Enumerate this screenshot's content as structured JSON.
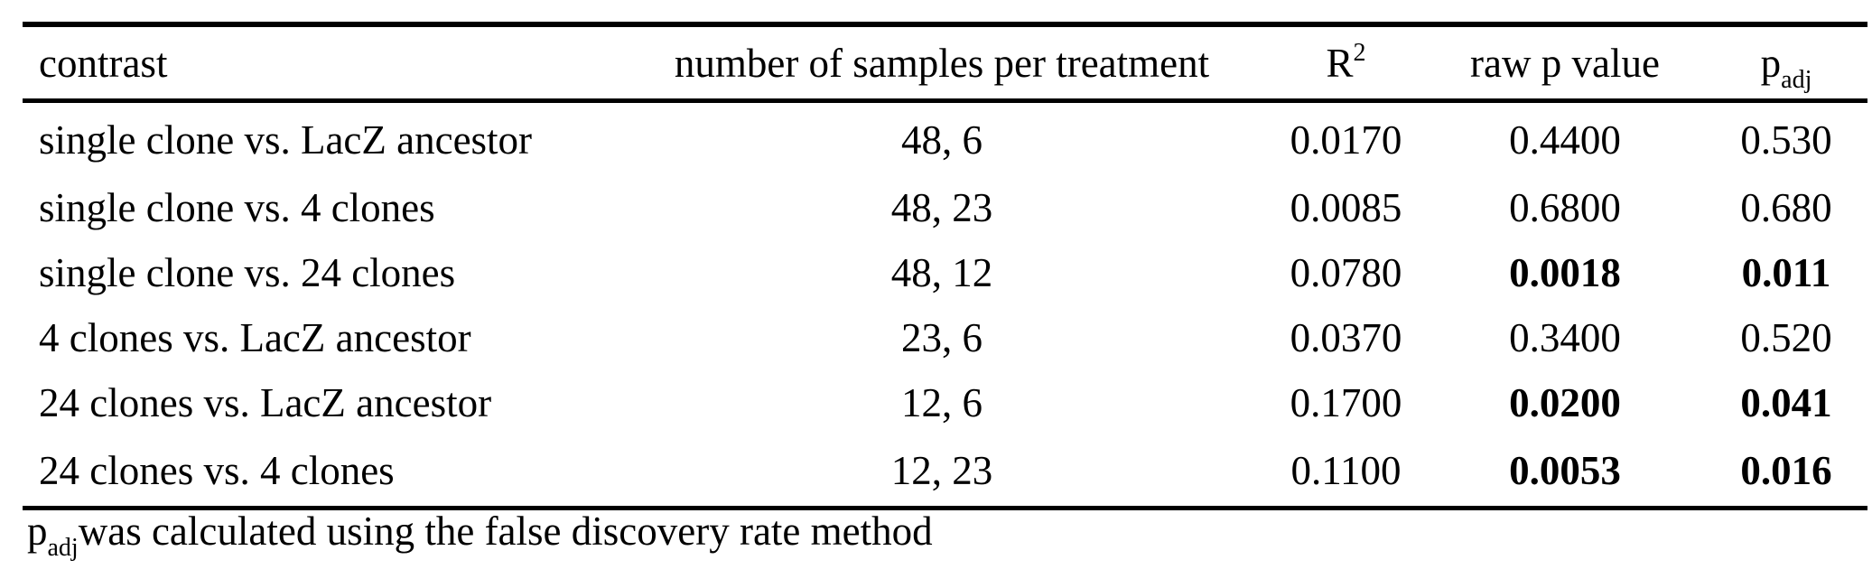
{
  "table": {
    "headers": {
      "contrast": "contrast",
      "samples": "number of samples per treatment",
      "r2_base": "R",
      "r2_sup": "2",
      "raw_p": "raw p value",
      "padj_base": "p",
      "padj_sub": "adj"
    },
    "rows": [
      {
        "contrast": "single clone vs. LacZ ancestor",
        "samples": "48, 6",
        "r2": "0.0170",
        "raw_p": "0.4400",
        "padj": "0.530",
        "significant": false
      },
      {
        "contrast": "single clone vs. 4 clones",
        "samples": "48, 23",
        "r2": "0.0085",
        "raw_p": "0.6800",
        "padj": "0.680",
        "significant": false
      },
      {
        "contrast": "single clone vs. 24 clones",
        "samples": "48, 12",
        "r2": "0.0780",
        "raw_p": "0.0018",
        "padj": "0.011",
        "significant": true
      },
      {
        "contrast": "4 clones vs. LacZ ancestor",
        "samples": "23, 6",
        "r2": "0.0370",
        "raw_p": "0.3400",
        "padj": "0.520",
        "significant": false
      },
      {
        "contrast": "24 clones vs. LacZ ancestor",
        "samples": "12, 6",
        "r2": "0.1700",
        "raw_p": "0.0200",
        "padj": "0.041",
        "significant": true
      },
      {
        "contrast": "24 clones vs. 4 clones",
        "samples": "12, 23",
        "r2": "0.1100",
        "raw_p": "0.0053",
        "padj": "0.016",
        "significant": true
      }
    ]
  },
  "footnote": {
    "p_base": "p",
    "p_sub": "adj",
    "text": "was calculated using the false discovery rate method"
  }
}
